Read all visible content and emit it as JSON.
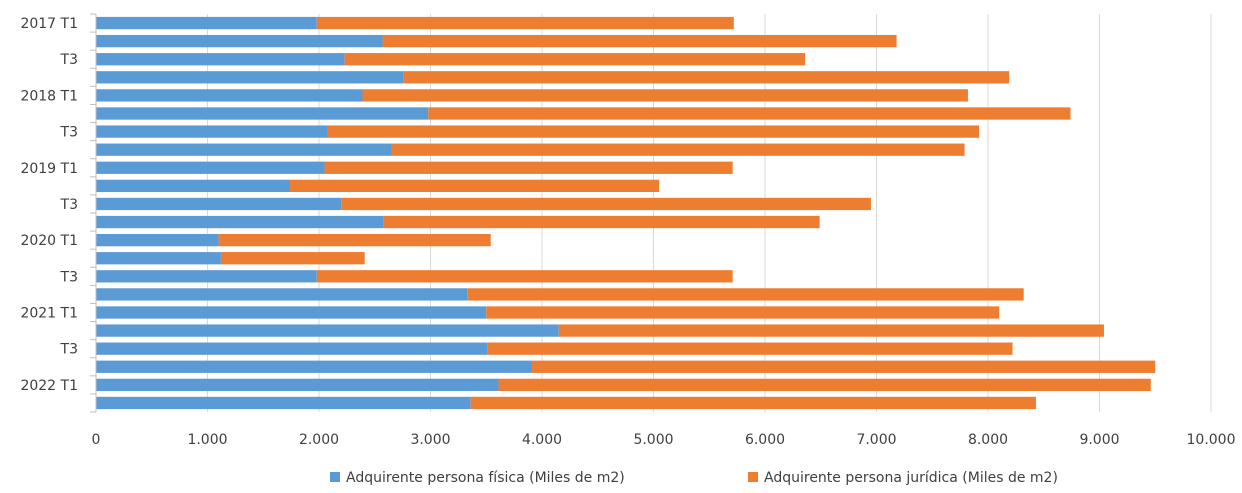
{
  "chart_data": {
    "type": "bar",
    "orientation": "horizontal",
    "stacked": true,
    "categories": [
      "2017 T1",
      "",
      "T3",
      "",
      "2018 T1",
      "",
      "T3",
      "",
      "2019 T1",
      "",
      "T3",
      "",
      "2020 T1",
      "",
      "T3",
      "",
      "2021 T1",
      "",
      "T3",
      "",
      "2022 T1",
      ""
    ],
    "series": [
      {
        "name": "Adquirente persona física (Miles de m2)",
        "color": "#5b9bd5",
        "values": [
          1980,
          2570,
          2230,
          2760,
          2390,
          2980,
          2080,
          2650,
          2050,
          1740,
          2200,
          2580,
          1100,
          1120,
          1980,
          3330,
          3500,
          4150,
          3510,
          3910,
          3610,
          3360
        ]
      },
      {
        "name": "Adquirente persona jurídica (Miles de m2)",
        "color": "#ed7d31",
        "values": [
          3740,
          4610,
          4130,
          5430,
          5430,
          5760,
          5840,
          5140,
          3660,
          3310,
          4750,
          3910,
          2440,
          1290,
          3730,
          4990,
          4600,
          4890,
          4710,
          5590,
          5850,
          5070
        ]
      }
    ],
    "xlim": [
      0,
      10000
    ],
    "xticks": [
      "0",
      "1.000",
      "2.000",
      "3.000",
      "4.000",
      "5.000",
      "6.000",
      "7.000",
      "8.000",
      "9.000",
      "10.000"
    ],
    "xtick_values": [
      0,
      1000,
      2000,
      3000,
      4000,
      5000,
      6000,
      7000,
      8000,
      9000,
      10000
    ],
    "grid": true,
    "legend_position": "bottom"
  }
}
